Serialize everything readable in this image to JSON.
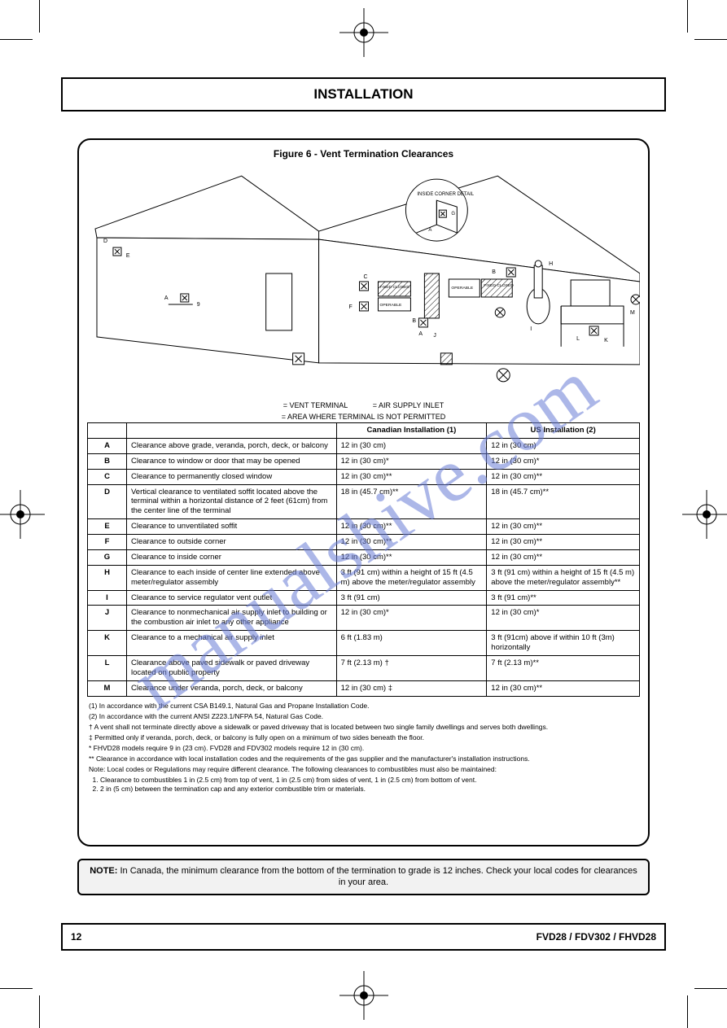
{
  "title": "INSTALLATION",
  "watermark": "manualshive.com",
  "figure": {
    "title": "Figure 6 - Vent Termination Clearances",
    "diagram_labels": {
      "inside_corner_detail": "INSIDE CORNER DETAIL",
      "fixed_closed": "FIXED CLOSED",
      "operable": "OPERABLE"
    },
    "legend": {
      "vent": "= VENT TERMINAL",
      "air": "= AIR SUPPLY INLET",
      "no": "= AREA WHERE TERMINAL IS NOT PERMITTED"
    }
  },
  "table": {
    "header_ca": "Canadian Installation (1)",
    "header_us": "US Installation (2)",
    "rows": [
      {
        "l": "A",
        "desc": "Clearance above grade, veranda, porch, deck, or balcony",
        "ca": "12 in (30 cm)",
        "us": "12 in (30 cm)"
      },
      {
        "l": "B",
        "desc": "Clearance to window or door that may be opened",
        "ca": "12 in (30 cm)*",
        "us": "12 in (30 cm)*"
      },
      {
        "l": "C",
        "desc": "Clearance to permanently closed window",
        "ca": "12 in (30 cm)**",
        "us": "12 in (30 cm)**"
      },
      {
        "l": "D",
        "desc": "Vertical clearance to ventilated soffit located above the terminal within a horizontal distance of 2 feet (61cm) from the center line of the terminal",
        "ca": "18 in (45.7 cm)**",
        "us": "18 in (45.7 cm)**"
      },
      {
        "l": "E",
        "desc": "Clearance to unventilated soffit",
        "ca": "12 in (30 cm)**",
        "us": "12 in (30 cm)**"
      },
      {
        "l": "F",
        "desc": "Clearance to outside corner",
        "ca": "12 in (30 cm)**",
        "us": "12 in (30 cm)**"
      },
      {
        "l": "G",
        "desc": "Clearance to inside corner",
        "ca": "12 in (30 cm)**",
        "us": "12 in (30 cm)**"
      },
      {
        "l": "H",
        "desc": "Clearance to each inside of center line extended above meter/regulator assembly",
        "ca": "3 ft (91 cm) within a height of 15 ft (4.5 m) above the meter/regulator assembly",
        "us": "3 ft (91 cm) within a height of 15 ft (4.5 m) above the meter/regulator assembly**"
      },
      {
        "l": "I",
        "desc": "Clearance to service regulator vent outlet",
        "ca": "3 ft (91 cm)",
        "us": "3 ft (91 cm)**"
      },
      {
        "l": "J",
        "desc": "Clearance to nonmechanical air supply inlet to building or the combustion air inlet to any other appliance",
        "ca": "12 in (30 cm)*",
        "us": "12 in (30 cm)*"
      },
      {
        "l": "K",
        "desc": "Clearance to a mechanical air supply inlet",
        "ca": "6 ft (1.83 m)",
        "us": "3 ft (91cm) above if within 10 ft (3m) horizontally"
      },
      {
        "l": "L",
        "desc": "Clearance above paved sidewalk or paved driveway located on public property",
        "ca": "7 ft (2.13 m) †",
        "us": "7 ft (2.13 m)**"
      },
      {
        "l": "M",
        "desc": "Clearance under veranda, porch, deck, or balcony",
        "ca": "12 in (30 cm) ‡",
        "us": "12 in (30 cm)**"
      }
    ]
  },
  "footnotes": {
    "n1": "(1) In accordance with the current CSA B149.1, Natural Gas and Propane Installation Code.",
    "n2": "(2) In accordance with the current ANSI Z223.1/NFPA 54, Natural Gas Code.",
    "dagger": "† A vent shall not terminate directly above a sidewalk or paved driveway that is located between two single family dwellings and serves both dwellings.",
    "ddagger": "‡ Permitted only if veranda, porch, deck, or balcony is fully open on a minimum of two sides beneath the floor.",
    "star": "* FHVD28 models require 9 in (23 cm). FVD28 and FDV302 models require 12 in (30 cm).",
    "starstar": "** Clearance in accordance with local installation codes and the requirements of the gas supplier and the manufacturer's installation instructions.",
    "note_intro": "Note: Local codes or Regulations may require different clearance. The following clearances to combustibles must also be maintained:",
    "li1": "Clearance to combustibles 1 in (2.5 cm) from top of vent, 1 in (2.5 cm) from sides of vent, 1 in (2.5 cm) from bottom of vent.",
    "li2": "2 in (5 cm) between the termination cap and any exterior combustible trim or materials."
  },
  "note_bar": {
    "label": "NOTE:",
    "text": "In Canada, the minimum clearance from the bottom of the termination to grade is 12 inches. Check your local codes for clearances in your area."
  },
  "footer": {
    "page": "12",
    "title": "FVD28 / FDV302 / FHVD28"
  }
}
